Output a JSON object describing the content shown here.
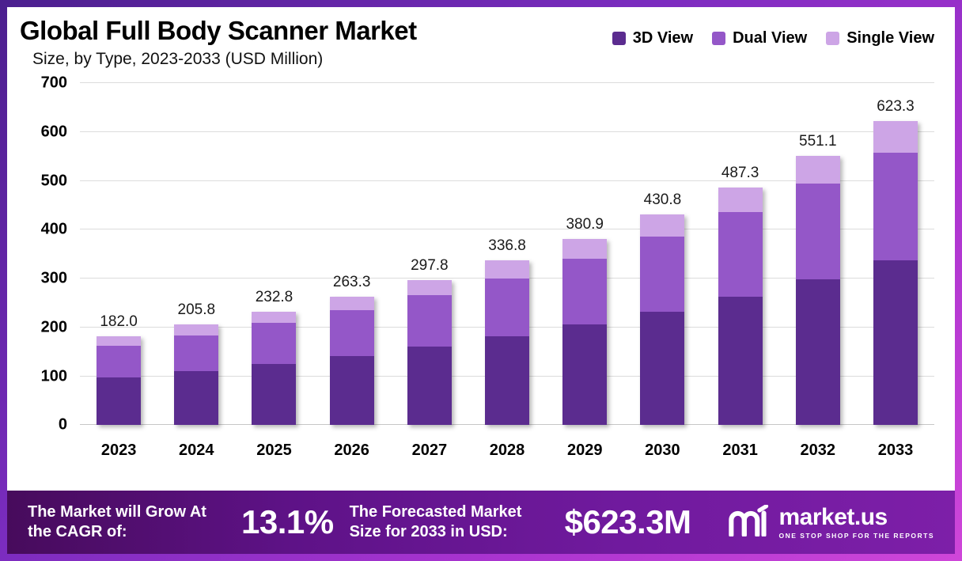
{
  "title": "Global Full Body Scanner Market",
  "subtitle": "Size, by Type, 2023-2033 (USD Million)",
  "legend": [
    {
      "label": "3D View",
      "color": "#5b2c8f"
    },
    {
      "label": "Dual View",
      "color": "#9457c8"
    },
    {
      "label": "Single View",
      "color": "#cda5e6"
    }
  ],
  "chart_data": {
    "type": "bar",
    "stacked": true,
    "title": "Global Full Body Scanner Market Size, by Type, 2023-2033 (USD Million)",
    "categories": [
      "2023",
      "2024",
      "2025",
      "2026",
      "2027",
      "2028",
      "2029",
      "2030",
      "2031",
      "2032",
      "2033"
    ],
    "series": [
      {
        "name": "3D View",
        "color": "#5b2c8f",
        "values": [
          98,
          111,
          126,
          142,
          161,
          182,
          206,
          233,
          263,
          298,
          337
        ]
      },
      {
        "name": "Dual View",
        "color": "#9457c8",
        "values": [
          65,
          73,
          83,
          93,
          105,
          119,
          135,
          153,
          173,
          196,
          221
        ]
      },
      {
        "name": "Single View",
        "color": "#cda5e6",
        "values": [
          19,
          21.8,
          23.8,
          28.3,
          31.8,
          35.8,
          39.9,
          44.8,
          51.3,
          57.1,
          65.3
        ]
      }
    ],
    "totals": [
      182.0,
      205.8,
      232.8,
      263.3,
      297.8,
      336.8,
      380.9,
      430.8,
      487.3,
      551.1,
      623.3
    ],
    "total_labels": [
      "182.0",
      "205.8",
      "232.8",
      "263.3",
      "297.8",
      "336.8",
      "380.9",
      "430.8",
      "487.3",
      "551.1",
      "623.3"
    ],
    "xlabel": "",
    "ylabel": "",
    "ylim": [
      0,
      700
    ],
    "ytick_interval": 100,
    "grid": true,
    "legend_position": "top-right"
  },
  "banner": {
    "cagr_label": "The Market will Grow At the CAGR of:",
    "cagr_value": "13.1%",
    "forecast_label": "The Forecasted Market Size for 2033 in USD:",
    "forecast_value": "$623.3M",
    "brand": "market.us",
    "brand_tagline": "ONE STOP SHOP FOR THE REPORTS"
  }
}
